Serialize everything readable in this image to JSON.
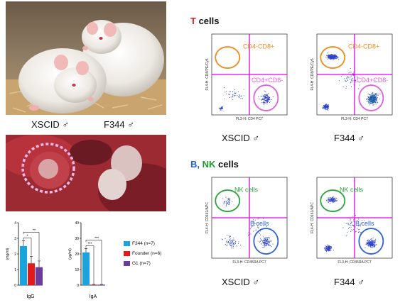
{
  "photos": {
    "rats": {
      "left_label": "XSCID ♂",
      "right_label": "F344 ♂"
    }
  },
  "tcell_section": {
    "title_letter": "T",
    "title_rest": " cells",
    "letter_color": "#e5221a",
    "panels": [
      {
        "label": "XSCID ♂",
        "gate_top": "CD4-CD8+",
        "gate_bottom": "CD4+CD8-",
        "y_axis": "FL4-H: CD8/PE/Cy5",
        "x_axis": "FL3-H: CD4 PC7"
      },
      {
        "label": "F344 ♂",
        "gate_top": "CD4-CD8+",
        "gate_bottom": "CD4+CD8-",
        "y_axis": "FL4-H: CD8/PE/Cy5",
        "x_axis": "FL3-H: CD4 PC7"
      }
    ]
  },
  "bnk_section": {
    "title_b": "B,",
    "title_nk": " NK",
    "title_rest": " cells",
    "b_color": "#1f5fd6",
    "nk_color": "#1e9a2e",
    "panels": [
      {
        "label": "XSCID ♂",
        "gate_top": "NK cells",
        "gate_bottom": "B cells",
        "y_axis": "FL4-H: CD161/APC",
        "x_axis": "FL3-H: CD45RA PC7"
      },
      {
        "label": "F344 ♂",
        "gate_top": "NK cells",
        "gate_bottom": "B cells",
        "y_axis": "FL4-H: CD161/APC",
        "x_axis": "FL3-H: CD45RA PC7"
      }
    ]
  },
  "chart_data": [
    {
      "type": "bar",
      "categories": [
        "IgG"
      ],
      "series": [
        {
          "name": "F344 (n=7)",
          "values": [
            2.5
          ],
          "error": [
            0.35
          ],
          "color": "#1aa3dc"
        },
        {
          "name": "Founder (n=6)",
          "values": [
            1.4
          ],
          "error": [
            0.45
          ],
          "color": "#e31a1c"
        },
        {
          "name": "G1 (n=7)",
          "values": [
            1.15
          ],
          "error": [
            0.4
          ],
          "color": "#6a3d9a"
        }
      ],
      "ylabel": "(mg/ml)",
      "ylim": [
        0,
        4
      ],
      "yticks": [
        "0",
        "1",
        "2",
        "3",
        "4"
      ],
      "significance": [
        "*",
        "**"
      ]
    },
    {
      "type": "bar",
      "categories": [
        "IgA"
      ],
      "series": [
        {
          "name": "F344 (n=7)",
          "values": [
            21
          ],
          "error": [
            2.5
          ],
          "color": "#1aa3dc"
        },
        {
          "name": "Founder (n=6)",
          "values": [
            0.3
          ],
          "error": [
            0.2
          ],
          "color": "#e31a1c"
        },
        {
          "name": "G1 (n=7)",
          "values": [
            0.3
          ],
          "error": [
            0.2
          ],
          "color": "#6a3d9a"
        }
      ],
      "ylabel": "(μg/ml)",
      "ylim": [
        0,
        40
      ],
      "yticks": [
        "0",
        "10",
        "20",
        "30",
        "40"
      ],
      "significance": [
        "***",
        "***"
      ]
    }
  ],
  "legend": [
    {
      "label": "F344 (n=7)",
      "color": "#1aa3dc"
    },
    {
      "label": "Founder (n=6)",
      "color": "#e31a1c"
    },
    {
      "label": "G1 (n=7)",
      "color": "#6a3d9a"
    }
  ]
}
